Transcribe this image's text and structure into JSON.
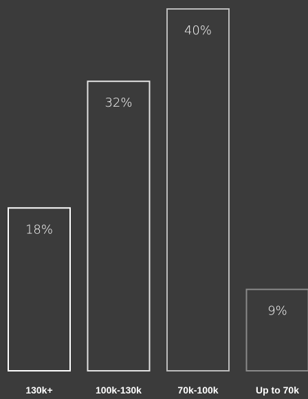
{
  "colors": {
    "background": "#3b3b3b",
    "text": "#ffffff",
    "bar_strokes": [
      "#ffffff",
      "#e3e3e3",
      "#bdbdbd",
      "#8a8a8a"
    ]
  },
  "chart_data": {
    "type": "bar",
    "categories": [
      "130k+",
      "100k-130k",
      "70k-100k",
      "Up to 70k"
    ],
    "values": [
      18,
      32,
      40,
      9
    ],
    "data_labels": [
      "18%",
      "32%",
      "40%",
      "9%"
    ],
    "ylim": [
      0,
      40
    ],
    "grid": false,
    "legend": "none",
    "bar_style": "outline"
  }
}
